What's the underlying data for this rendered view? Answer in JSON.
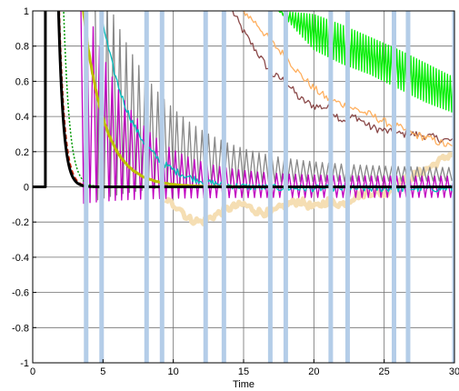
{
  "chart_data": {
    "type": "line",
    "title": "",
    "xlabel": "Time",
    "ylabel": "",
    "xlim": [
      0,
      30
    ],
    "ylim": [
      -1,
      1
    ],
    "grid": true,
    "xticks": [
      0,
      5,
      10,
      15,
      20,
      25,
      30
    ],
    "xtick_labels": [
      "0",
      "5",
      "10",
      "15",
      "20",
      "25",
      "30"
    ],
    "yticks": [
      -1,
      -0.8,
      -0.6,
      -0.4,
      -0.2,
      0,
      0.2,
      0.4,
      0.6,
      0.8,
      1
    ],
    "ytick_labels": [
      "-1",
      "-0.8",
      "-0.6",
      "-0.4",
      "-0.2",
      "0",
      "0.2",
      "0.4",
      "0.6",
      "0.8",
      "1"
    ],
    "vertical_bands": {
      "color": "#b4cde8",
      "x": [
        3.8,
        4.9,
        8.1,
        9.2,
        12.3,
        13.6,
        16.9,
        18.0,
        21.2,
        22.4,
        25.7,
        26.7,
        30.0
      ]
    },
    "series": [
      {
        "color": "#000000",
        "style": "solid-thick",
        "kind": "pulse_decay",
        "rise": [
          0.9,
          1.0
        ],
        "t0": 1.65,
        "tau": 0.35,
        "y0": 1.7
      },
      {
        "color": "#cc2200",
        "style": "dashed",
        "kind": "decay",
        "t0": 1.9,
        "tau": 0.38,
        "y0": 1.0
      },
      {
        "color": "#009900",
        "style": "dotted",
        "kind": "decay",
        "t0": 2.2,
        "tau": 0.42,
        "y0": 1.0
      },
      {
        "color": "#bdbd00",
        "style": "solid-thick",
        "kind": "decay",
        "t0": 3.6,
        "tau": 1.5,
        "y0": 1.0,
        "noise": 0.02
      },
      {
        "color": "#00bcbc",
        "style": "solid",
        "kind": "decay_noise",
        "t0": 5.0,
        "tau": 2.3,
        "y0": 0.93,
        "tail": -0.01,
        "noise": 0.02
      },
      {
        "color": "#c000c0",
        "style": "solid",
        "kind": "osc_decay",
        "t0": 4.0,
        "tau": 3.3,
        "y0": 0.9,
        "center": 0.0,
        "amp_end": 0.1,
        "period": 0.45
      },
      {
        "color": "#888888",
        "style": "solid",
        "kind": "osc_decay",
        "t0": 5.0,
        "tau": 4.5,
        "y0": 1.0,
        "center": 0.07,
        "amp_end": 0.06,
        "period": 0.45
      },
      {
        "color": "#f5deb3",
        "style": "solid-thick",
        "kind": "wander",
        "x": [
          9.5,
          10.5,
          11,
          12,
          13,
          14,
          15,
          16,
          17,
          18,
          19,
          20,
          21,
          22,
          23,
          24,
          25,
          26,
          27,
          28,
          29,
          30
        ],
        "values": [
          -0.08,
          -0.12,
          -0.18,
          -0.2,
          -0.16,
          -0.12,
          -0.1,
          -0.14,
          -0.15,
          -0.1,
          -0.08,
          -0.12,
          -0.08,
          -0.1,
          -0.05,
          -0.03,
          -0.04,
          0.02,
          0.06,
          0.1,
          0.15,
          0.2
        ]
      },
      {
        "color": "#ffb060",
        "style": "solid",
        "kind": "wander",
        "x": [
          15,
          16,
          17,
          18,
          19,
          20,
          21,
          22,
          23,
          24,
          25,
          26,
          27,
          28,
          29,
          30
        ],
        "values": [
          1.0,
          0.92,
          0.82,
          0.74,
          0.64,
          0.56,
          0.5,
          0.47,
          0.44,
          0.41,
          0.37,
          0.34,
          0.3,
          0.28,
          0.25,
          0.22
        ]
      },
      {
        "color": "#8b4a4a",
        "style": "solid",
        "kind": "wander",
        "x": [
          14.2,
          15,
          16,
          17,
          18,
          19,
          20,
          21,
          22,
          23,
          24,
          25,
          26,
          27,
          28,
          29,
          30
        ],
        "values": [
          1.0,
          0.88,
          0.76,
          0.64,
          0.6,
          0.5,
          0.46,
          0.45,
          0.38,
          0.4,
          0.34,
          0.32,
          0.3,
          0.3,
          0.29,
          0.27,
          0.26
        ]
      },
      {
        "color": "#00ee00",
        "style": "solid",
        "kind": "osc_band",
        "x": [
          17.5,
          20,
          22,
          24,
          26,
          28,
          30
        ],
        "upper": [
          1.0,
          0.98,
          0.92,
          0.85,
          0.78,
          0.7,
          0.62
        ],
        "lower": [
          1.0,
          0.78,
          0.7,
          0.64,
          0.56,
          0.48,
          0.42
        ],
        "period": 0.2
      }
    ]
  }
}
